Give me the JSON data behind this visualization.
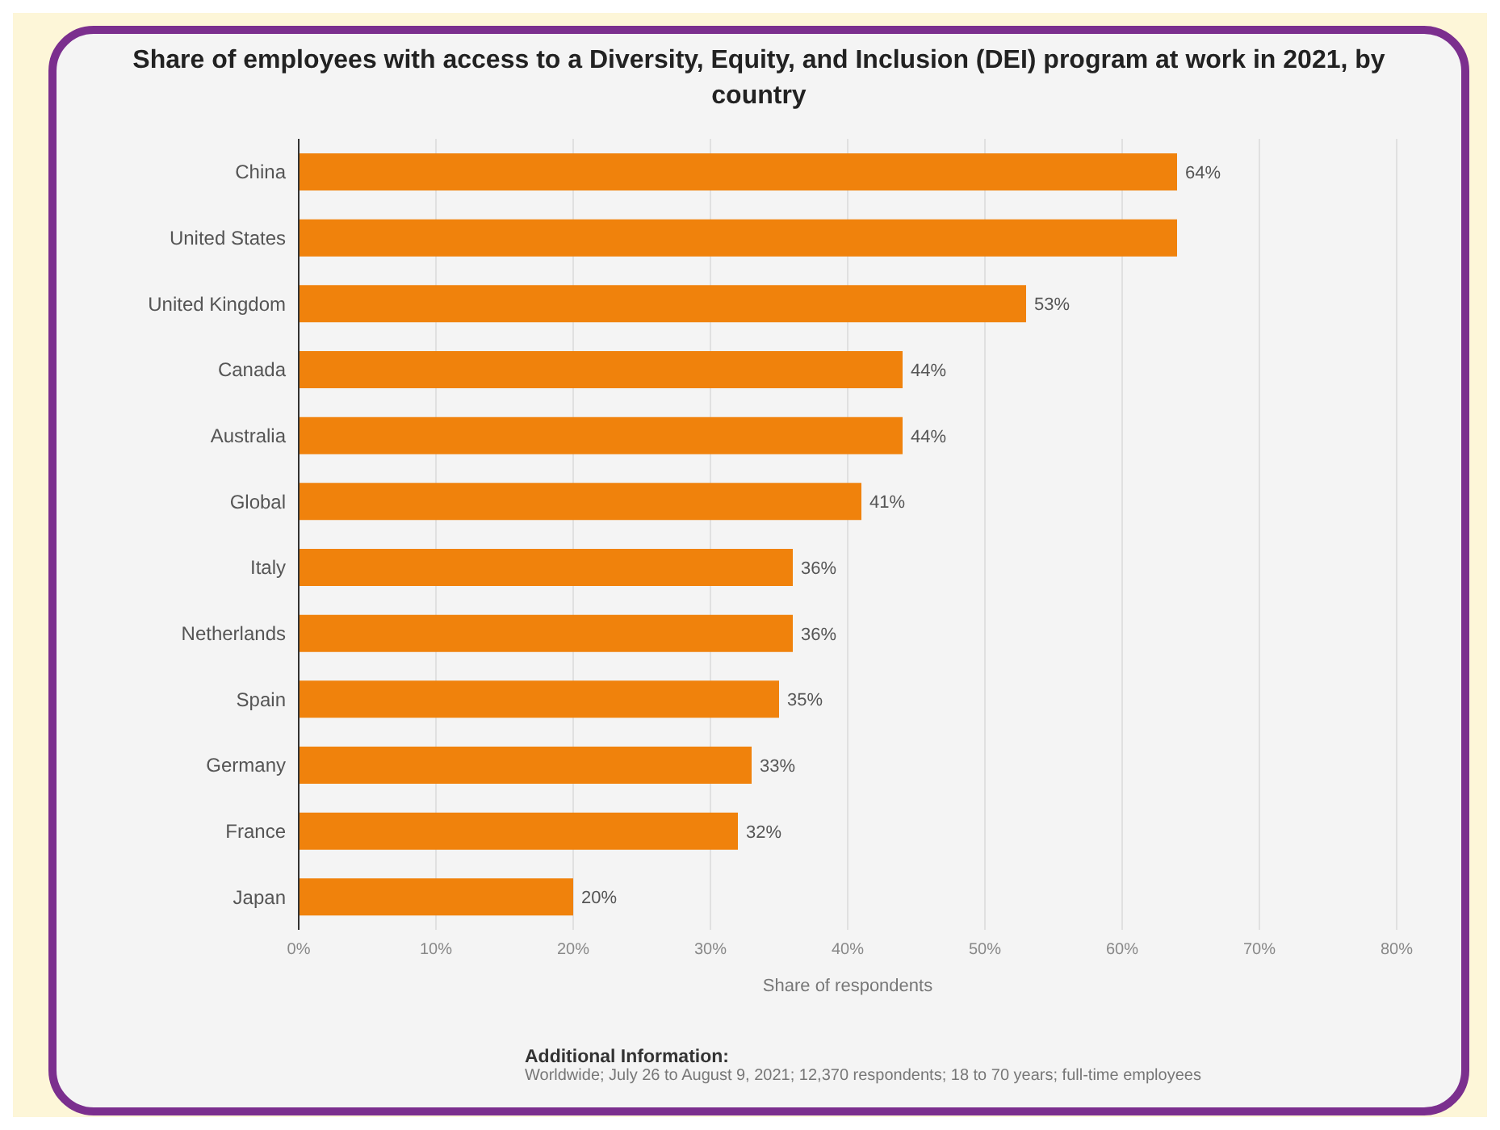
{
  "chart_data": {
    "type": "bar",
    "orientation": "horizontal",
    "title": "Share of employees with access to a Diversity, Equity, and Inclusion (DEI) program at work in 2021, by country",
    "xlabel": "Share of respondents",
    "categories": [
      "China",
      "United States",
      "United Kingdom",
      "Canada",
      "Australia",
      "Global",
      "Italy",
      "Netherlands",
      "Spain",
      "Germany",
      "France",
      "Japan"
    ],
    "values": [
      64,
      64,
      53,
      44,
      44,
      41,
      36,
      36,
      35,
      33,
      32,
      20
    ],
    "value_labels": [
      "64%",
      null,
      "53%",
      "44%",
      "44%",
      "41%",
      "36%",
      "36%",
      "35%",
      "33%",
      "32%",
      "20%"
    ],
    "color": "#f0820c",
    "xlim": [
      0,
      80
    ],
    "xticks": [
      {
        "value": 0,
        "label": "0%"
      },
      {
        "value": 10,
        "label": "10%"
      },
      {
        "value": 20,
        "label": "20%"
      },
      {
        "value": 30,
        "label": "30%"
      },
      {
        "value": 40,
        "label": "40%"
      },
      {
        "value": 50,
        "label": "50%"
      },
      {
        "value": 60,
        "label": "60%"
      },
      {
        "value": 70,
        "label": "70%"
      },
      {
        "value": 80,
        "label": "80%"
      }
    ],
    "grid": "x",
    "annotations": [
      "Additional Information:",
      "Worldwide; July 26 to August 9, 2021; 12,370 respondents; 18 to 70 years; full-time employees"
    ]
  }
}
